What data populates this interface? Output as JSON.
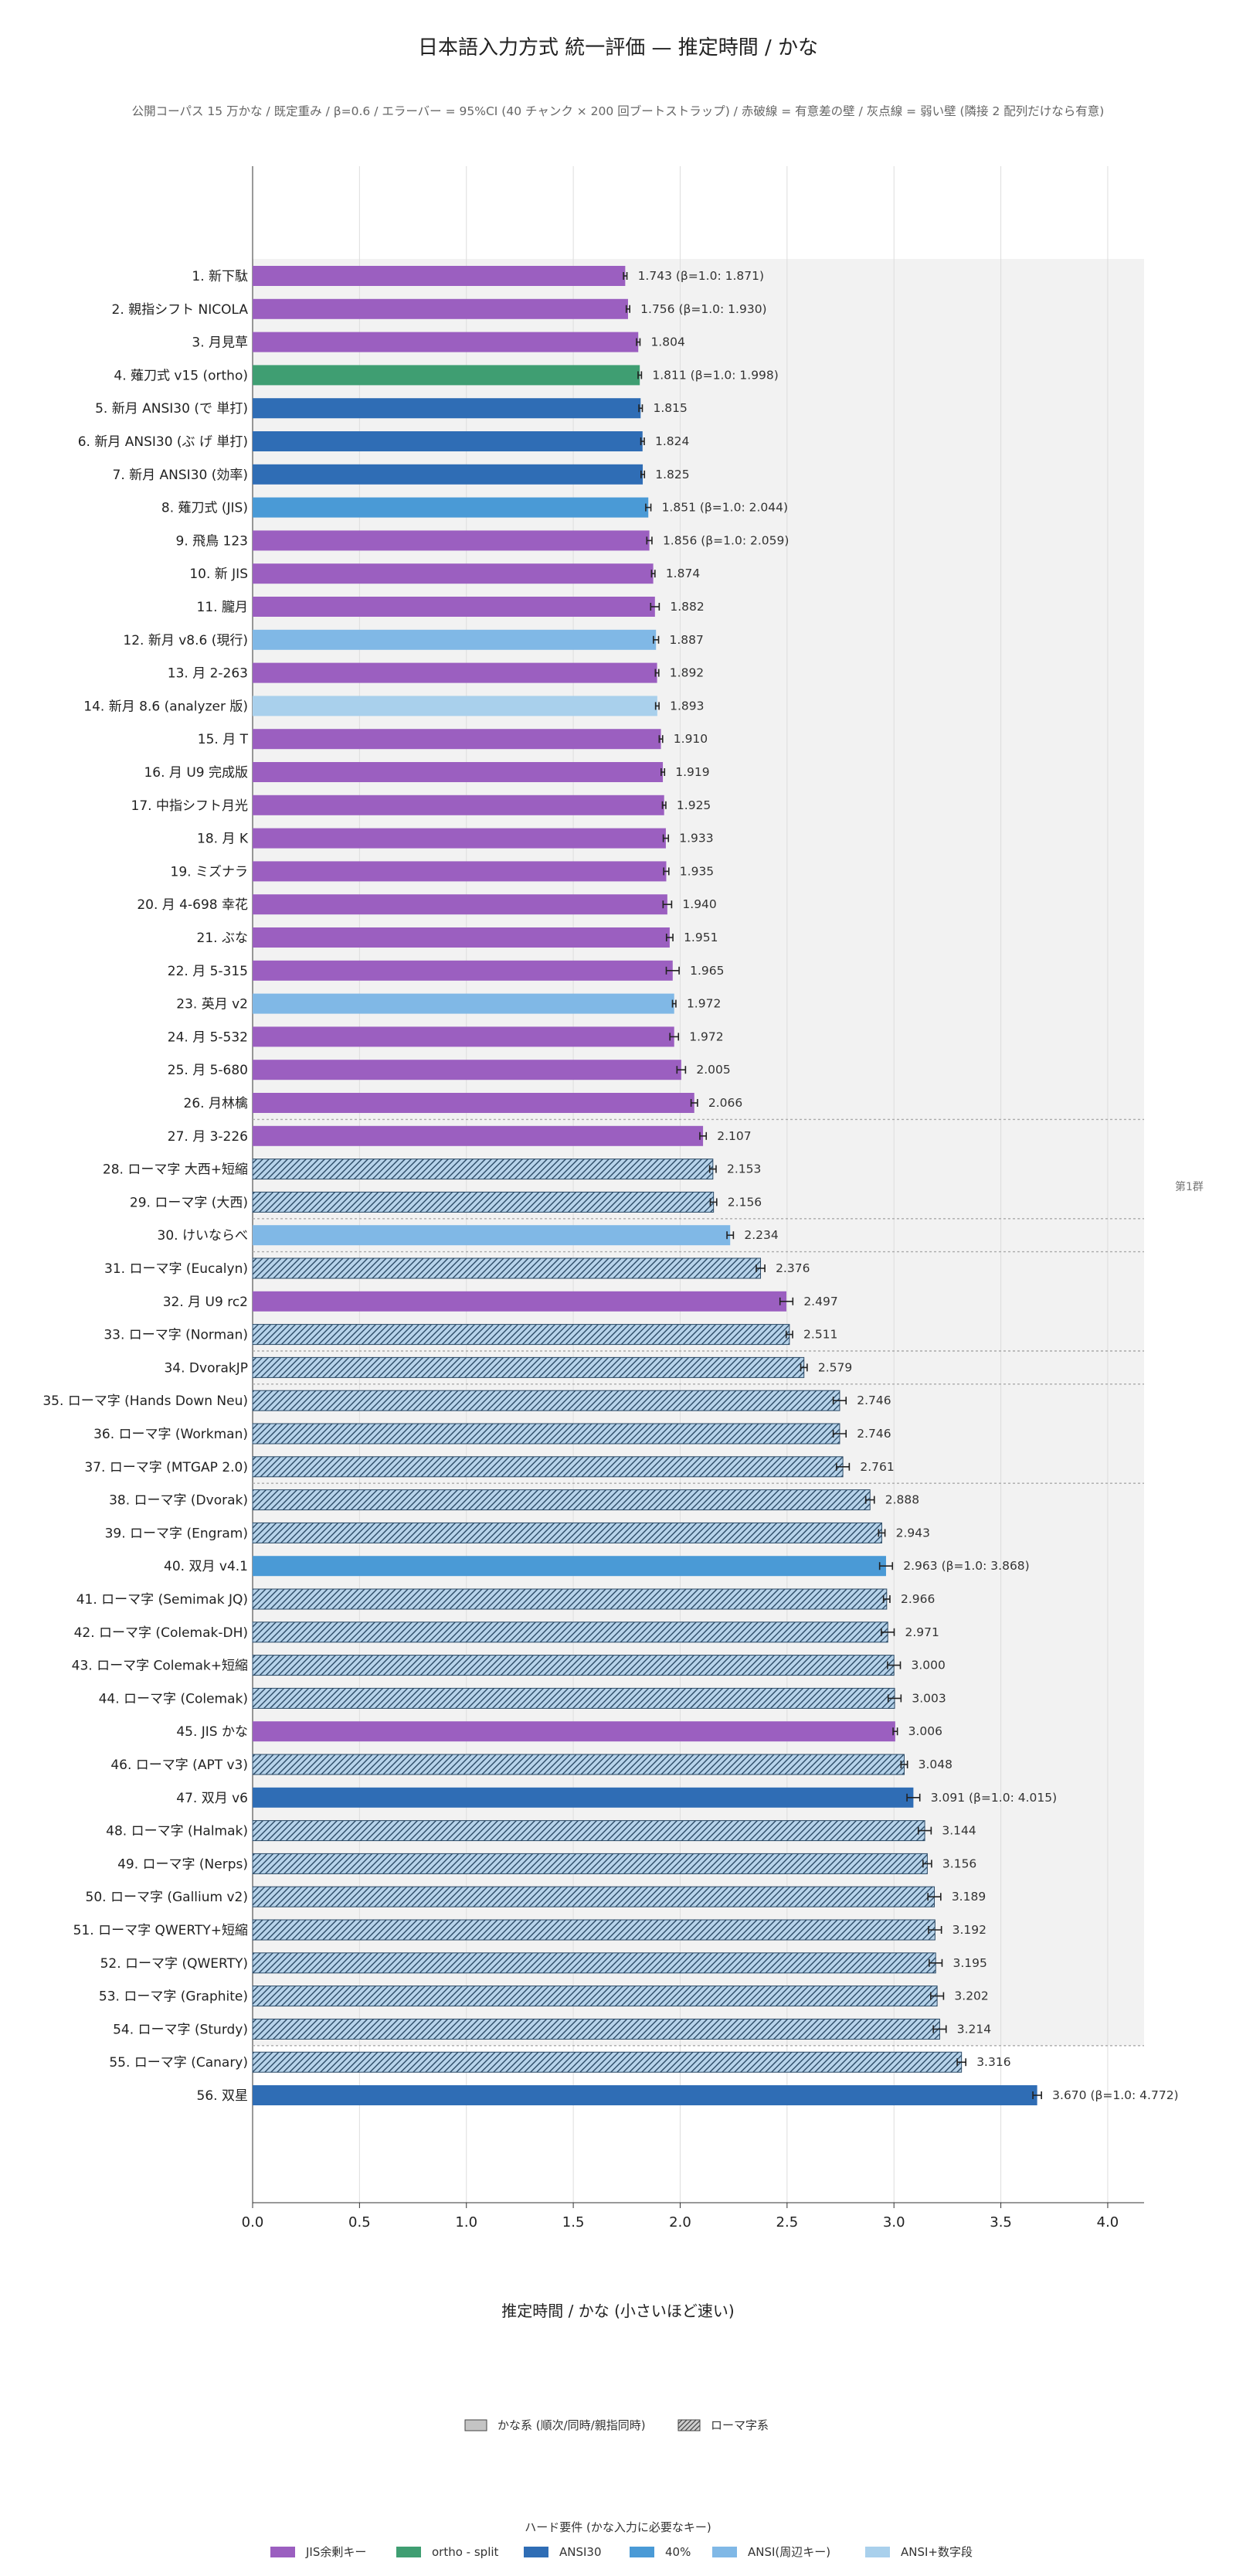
{
  "chart_data": {
    "type": "bar",
    "orientation": "horizontal",
    "title": "日本語入力方式 統一評価 — 推定時間 / かな",
    "subtitle": "公開コーパス 15 万かな / 既定重み / β=0.6 / エラーバー = 95%CI (40 チャンク × 200 回ブートストラップ) / 赤破線 = 有意差の壁 / 灰点線 = 弱い壁 (隣接 2 配列だけなら有意)",
    "xlabel": "推定時間 / かな (小さいほど速い)",
    "xlim": [
      0,
      4.17
    ],
    "xticks": [
      "0.0",
      "0.5",
      "1.0",
      "1.5",
      "2.0",
      "2.5",
      "3.0",
      "3.5",
      "4.0"
    ],
    "grid": "vertical",
    "group_label": "第1群",
    "group_shading": {
      "from_rank": 1,
      "to_rank": 54
    },
    "weak_walls_after_rank": [
      26,
      29,
      30,
      33,
      34,
      37,
      54
    ],
    "categories": [
      "1. 新下駄",
      "2. 親指シフト NICOLA",
      "3. 月見草",
      "4. 薙刀式 v15 (ortho)",
      "5. 新月 ANSI30 (で 単打)",
      "6. 新月 ANSI30 (ぶ げ 単打)",
      "7. 新月 ANSI30 (効率)",
      "8. 薙刀式 (JIS)",
      "9. 飛鳥 123",
      "10. 新 JIS",
      "11. 朧月",
      "12. 新月 v8.6 (現行)",
      "13. 月 2-263",
      "14. 新月 8.6 (analyzer 版)",
      "15. 月 T",
      "16. 月 U9 完成版",
      "17. 中指シフト月光",
      "18. 月 K",
      "19. ミズナラ",
      "20. 月 4-698 幸花",
      "21. ぶな",
      "22. 月 5-315",
      "23. 英月 v2",
      "24. 月 5-532",
      "25. 月 5-680",
      "26. 月林檎",
      "27. 月 3-226",
      "28. ローマ字 大西+短縮",
      "29. ローマ字 (大西)",
      "30. けいならべ",
      "31. ローマ字 (Eucalyn)",
      "32. 月 U9 rc2",
      "33. ローマ字 (Norman)",
      "34. DvorakJP",
      "35. ローマ字 (Hands Down Neu)",
      "36. ローマ字 (Workman)",
      "37. ローマ字 (MTGAP 2.0)",
      "38. ローマ字 (Dvorak)",
      "39. ローマ字 (Engram)",
      "40. 双月 v4.1",
      "41. ローマ字 (Semimak JQ)",
      "42. ローマ字 (Colemak-DH)",
      "43. ローマ字 Colemak+短縮",
      "44. ローマ字 (Colemak)",
      "45. JIS かな",
      "46. ローマ字 (APT v3)",
      "47. 双月 v6",
      "48. ローマ字 (Halmak)",
      "49. ローマ字 (Nerps)",
      "50. ローマ字 (Gallium v2)",
      "51. ローマ字 QWERTY+短縮",
      "52. ローマ字 (QWERTY)",
      "53. ローマ字 (Graphite)",
      "54. ローマ字 (Sturdy)",
      "55. ローマ字 (Canary)",
      "56. 双星"
    ],
    "values": [
      1.743,
      1.756,
      1.804,
      1.811,
      1.815,
      1.824,
      1.825,
      1.851,
      1.856,
      1.874,
      1.882,
      1.887,
      1.892,
      1.893,
      1.91,
      1.919,
      1.925,
      1.933,
      1.935,
      1.94,
      1.951,
      1.965,
      1.972,
      1.972,
      2.005,
      2.066,
      2.107,
      2.153,
      2.156,
      2.234,
      2.376,
      2.497,
      2.511,
      2.579,
      2.746,
      2.746,
      2.761,
      2.888,
      2.943,
      2.963,
      2.966,
      2.971,
      3.0,
      3.003,
      3.006,
      3.048,
      3.091,
      3.144,
      3.156,
      3.189,
      3.192,
      3.195,
      3.202,
      3.214,
      3.316,
      3.67
    ],
    "value_labels": [
      "1.743 (β=1.0: 1.871)",
      "1.756 (β=1.0: 1.930)",
      "1.804",
      "1.811 (β=1.0: 1.998)",
      "1.815",
      "1.824",
      "1.825",
      "1.851 (β=1.0: 2.044)",
      "1.856 (β=1.0: 2.059)",
      "1.874",
      "1.882",
      "1.887",
      "1.892",
      "1.893",
      "1.910",
      "1.919",
      "1.925",
      "1.933",
      "1.935",
      "1.940",
      "1.951",
      "1.965",
      "1.972",
      "1.972",
      "2.005",
      "2.066",
      "2.107",
      "2.153",
      "2.156",
      "2.234",
      "2.376",
      "2.497",
      "2.511",
      "2.579",
      "2.746",
      "2.746",
      "2.761",
      "2.888",
      "2.943",
      "2.963 (β=1.0: 3.868)",
      "2.966",
      "2.971",
      "3.000",
      "3.003",
      "3.006",
      "3.048",
      "3.091 (β=1.0: 4.015)",
      "3.144",
      "3.156",
      "3.189",
      "3.192",
      "3.195",
      "3.202",
      "3.214",
      "3.316",
      "3.670 (β=1.0: 4.772)"
    ],
    "ci_halfwidth": [
      0.008,
      0.008,
      0.008,
      0.008,
      0.008,
      0.008,
      0.008,
      0.012,
      0.012,
      0.008,
      0.02,
      0.012,
      0.008,
      0.008,
      0.008,
      0.008,
      0.008,
      0.012,
      0.012,
      0.02,
      0.015,
      0.03,
      0.008,
      0.02,
      0.02,
      0.015,
      0.015,
      0.015,
      0.015,
      0.015,
      0.02,
      0.03,
      0.015,
      0.015,
      0.03,
      0.03,
      0.03,
      0.02,
      0.015,
      0.03,
      0.015,
      0.03,
      0.03,
      0.03,
      0.01,
      0.015,
      0.03,
      0.03,
      0.02,
      0.03,
      0.03,
      0.03,
      0.03,
      0.03,
      0.02,
      0.02
    ],
    "style": [
      "JIS余剰キー",
      "JIS余剰キー",
      "JIS余剰キー",
      "ortho - split",
      "ANSI30",
      "ANSI30",
      "ANSI30",
      "40%",
      "JIS余剰キー",
      "JIS余剰キー",
      "JIS余剰キー",
      "ANSI(周辺キー)",
      "JIS余剰キー",
      "ANSI+数字段",
      "JIS余剰キー",
      "JIS余剰キー",
      "JIS余剰キー",
      "JIS余剰キー",
      "JIS余剰キー",
      "JIS余剰キー",
      "JIS余剰キー",
      "JIS余剰キー",
      "ANSI(周辺キー)",
      "JIS余剰キー",
      "JIS余剰キー",
      "JIS余剰キー",
      "JIS余剰キー",
      "romaji",
      "romaji",
      "ANSI(周辺キー)",
      "romaji",
      "JIS余剰キー",
      "romaji",
      "romaji",
      "romaji",
      "romaji",
      "romaji",
      "romaji",
      "romaji",
      "40%",
      "romaji",
      "romaji",
      "romaji",
      "romaji",
      "JIS余剰キー",
      "romaji",
      "ANSI30",
      "romaji",
      "romaji",
      "romaji",
      "romaji",
      "romaji",
      "romaji",
      "romaji",
      "romaji",
      "ANSI30"
    ],
    "legend_type": {
      "entries": [
        {
          "label": "かな系 (順次/同時/親指同時)",
          "pattern": "solid"
        },
        {
          "label": "ローマ字系",
          "pattern": "hatch"
        }
      ]
    },
    "legend_hw": {
      "title": "ハード要件 (かな入力に必要なキー)",
      "entries": [
        {
          "label": "JIS余剰キー",
          "color": "#9b5fc0"
        },
        {
          "label": "ortho - split",
          "color": "#3f9e72"
        },
        {
          "label": "ANSI30",
          "color": "#2f6db5"
        },
        {
          "label": "40%",
          "color": "#4a9ad6"
        },
        {
          "label": "ANSI(周辺キー)",
          "color": "#80b8e6"
        },
        {
          "label": "ANSI+数字段",
          "color": "#a9d0ec"
        }
      ]
    },
    "colors": {
      "romaji_fill": "#b7d3ea",
      "romaji_hatch": "#2b4a66",
      "plot_shade": "#f2f2f2",
      "grid": "#dddddd",
      "wall": "#aaaaaa"
    }
  }
}
